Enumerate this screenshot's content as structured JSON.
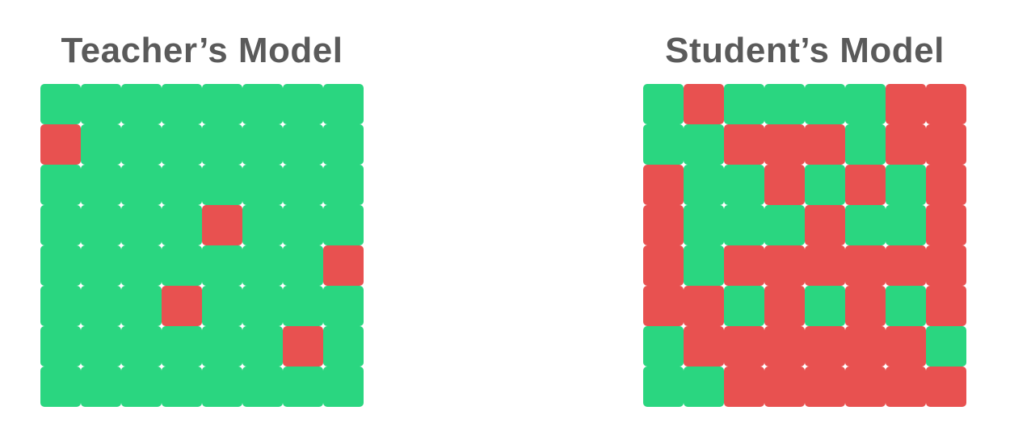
{
  "colors": {
    "correct": "#2ad680",
    "wrong": "#e85150",
    "title": "#5a5a5a"
  },
  "panels": [
    {
      "title": "Teacher’s Model",
      "grid": [
        "GGGGGGGG",
        "RGGGGGGG",
        "GGGGGGGG",
        "GGGGRGGG",
        "GGGGGGGR",
        "GGGRGGGG",
        "GGGGGGRG",
        "GGGGGGGG"
      ]
    },
    {
      "title": "Student’s Model",
      "grid": [
        "GRGGGGRR",
        "GGRRRGRR",
        "RGGRGRGR",
        "RGGGRGGR",
        "RGRRRRRR",
        "RRGRGRGR",
        "GRRRRRRG",
        "GGRRRRRR"
      ]
    }
  ]
}
